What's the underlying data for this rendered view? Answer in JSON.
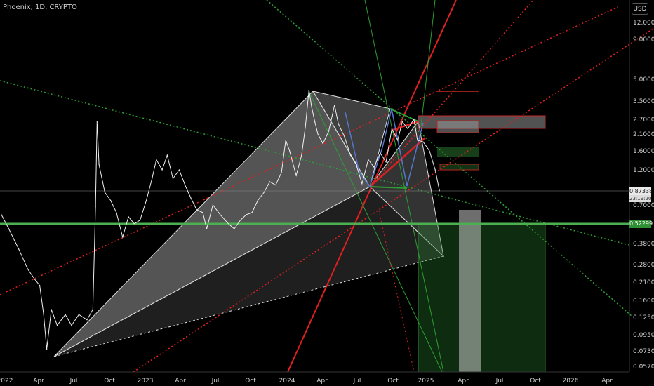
{
  "header": {
    "symbol": "Phoenix, 1D, CRYPTO",
    "currency_button": "USD"
  },
  "price_axis": {
    "labels": [
      "12.00000",
      "9.00000",
      "5.00000",
      "3.50000",
      "2.70000",
      "2.10000",
      "1.60000",
      "1.20000",
      "0.70000",
      "0.38000",
      "0.28000",
      "0.21000",
      "0.16000",
      "0.12500",
      "0.09500",
      "0.07300",
      "0.05700"
    ],
    "current_price": "0.87338",
    "countdown": "23:19:20",
    "support_price": "0.52299"
  },
  "time_axis": {
    "labels": [
      "2022",
      "Apr",
      "Jul",
      "Oct",
      "2023",
      "Apr",
      "Jul",
      "Oct",
      "2024",
      "Apr",
      "Jul",
      "Oct",
      "2025",
      "Apr",
      "Jul",
      "Oct",
      "2026",
      "Apr"
    ]
  },
  "colors": {
    "background": "#000000",
    "price_line": "#ffffff",
    "support": "#4caf50",
    "red_trend": "#e02020",
    "green_trend": "#2e9e34",
    "harmonic": "#d8d8d8",
    "pattern_blue": "#5577cc"
  },
  "chart_data": {
    "type": "line",
    "scale": "log",
    "grid": false,
    "series": [
      {
        "values_by_date": [
          [
            "2022-01-01",
            0.6
          ],
          [
            "2022-01-20",
            0.48
          ],
          [
            "2022-02-15",
            0.35
          ],
          [
            "2022-03-10",
            0.26
          ],
          [
            "2022-03-28",
            0.22
          ],
          [
            "2022-04-10",
            0.2
          ],
          [
            "2022-04-20",
            0.13
          ],
          [
            "2022-04-28",
            0.075
          ],
          [
            "2022-05-10",
            0.14
          ],
          [
            "2022-05-25",
            0.11
          ],
          [
            "2022-06-15",
            0.13
          ],
          [
            "2022-07-01",
            0.11
          ],
          [
            "2022-07-20",
            0.13
          ],
          [
            "2022-08-10",
            0.12
          ],
          [
            "2022-08-25",
            0.14
          ],
          [
            "2022-09-01",
            0.68
          ],
          [
            "2022-09-05",
            2.6
          ],
          [
            "2022-09-10",
            1.3
          ],
          [
            "2022-09-25",
            0.85
          ],
          [
            "2022-10-10",
            0.75
          ],
          [
            "2022-10-25",
            0.62
          ],
          [
            "2022-11-10",
            0.42
          ],
          [
            "2022-11-25",
            0.58
          ],
          [
            "2022-12-10",
            0.52
          ],
          [
            "2022-12-25",
            0.55
          ],
          [
            "2023-01-10",
            0.75
          ],
          [
            "2023-01-25",
            1.05
          ],
          [
            "2023-02-05",
            1.4
          ],
          [
            "2023-02-20",
            1.2
          ],
          [
            "2023-03-05",
            1.5
          ],
          [
            "2023-03-20",
            1.05
          ],
          [
            "2023-04-05",
            1.2
          ],
          [
            "2023-04-20",
            0.95
          ],
          [
            "2023-05-05",
            0.78
          ],
          [
            "2023-05-20",
            0.65
          ],
          [
            "2023-06-05",
            0.62
          ],
          [
            "2023-06-15",
            0.48
          ],
          [
            "2023-07-01",
            0.7
          ],
          [
            "2023-07-20",
            0.6
          ],
          [
            "2023-08-10",
            0.52
          ],
          [
            "2023-08-25",
            0.48
          ],
          [
            "2023-09-10",
            0.55
          ],
          [
            "2023-09-25",
            0.6
          ],
          [
            "2023-10-10",
            0.62
          ],
          [
            "2023-10-25",
            0.75
          ],
          [
            "2023-11-10",
            0.85
          ],
          [
            "2023-11-25",
            1.0
          ],
          [
            "2023-12-10",
            0.95
          ],
          [
            "2023-12-25",
            1.15
          ],
          [
            "2024-01-05",
            1.9
          ],
          [
            "2024-01-15",
            1.6
          ],
          [
            "2024-02-01",
            1.1
          ],
          [
            "2024-02-15",
            1.5
          ],
          [
            "2024-02-25",
            2.4
          ],
          [
            "2024-03-05",
            4.2
          ],
          [
            "2024-03-12",
            3.2
          ],
          [
            "2024-03-20",
            2.6
          ],
          [
            "2024-03-28",
            2.1
          ],
          [
            "2024-04-10",
            1.8
          ],
          [
            "2024-04-25",
            2.2
          ],
          [
            "2024-05-10",
            3.3
          ],
          [
            "2024-05-20",
            2.5
          ],
          [
            "2024-06-05",
            2.0
          ],
          [
            "2024-06-20",
            1.5
          ],
          [
            "2024-07-05",
            1.3
          ],
          [
            "2024-07-20",
            0.97
          ],
          [
            "2024-08-05",
            1.4
          ],
          [
            "2024-08-20",
            1.25
          ],
          [
            "2024-09-05",
            1.55
          ],
          [
            "2024-09-20",
            1.35
          ],
          [
            "2024-10-05",
            2.3
          ],
          [
            "2024-10-20",
            1.9
          ],
          [
            "2024-11-01",
            2.6
          ],
          [
            "2024-11-15",
            2.3
          ],
          [
            "2024-12-01",
            2.7
          ],
          [
            "2024-12-10",
            1.9
          ],
          [
            "2024-12-25",
            1.85
          ],
          [
            "2025-01-10",
            1.6
          ],
          [
            "2025-01-25",
            1.2
          ],
          [
            "2025-02-05",
            0.87
          ]
        ]
      }
    ]
  }
}
